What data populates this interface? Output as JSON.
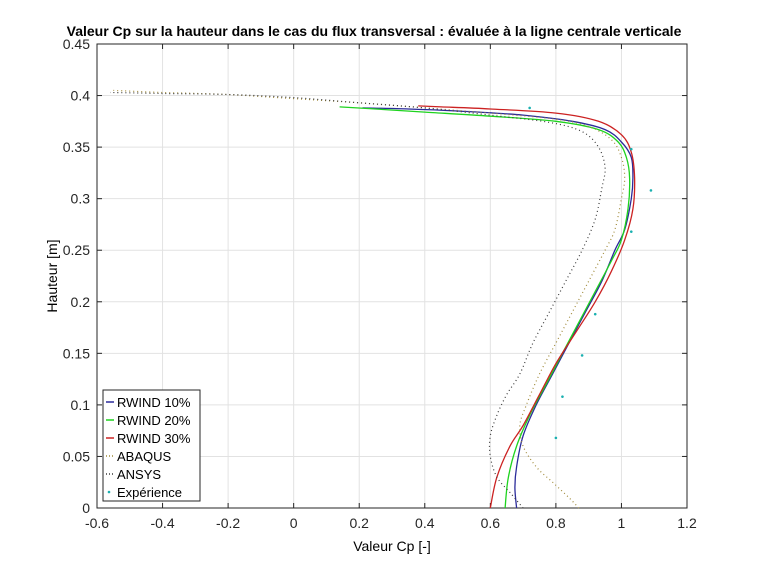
{
  "chart_data": {
    "type": "line",
    "title": "Valeur Cp sur la hauteur dans le cas du flux transversal : évaluée à la ligne centrale verticale",
    "xlabel": "Valeur Cp [-]",
    "ylabel": "Hauteur [m]",
    "xlim": [
      -0.6,
      1.2
    ],
    "ylim": [
      0,
      0.45
    ],
    "xticks": [
      -0.6,
      -0.4,
      -0.2,
      0,
      0.2,
      0.4,
      0.6,
      0.8,
      1,
      1.2
    ],
    "xtick_labels": [
      "-0.6",
      "-0.4",
      "-0.2",
      "0",
      "0.2",
      "0.4",
      "0.6",
      "0.8",
      "1",
      "1.2"
    ],
    "yticks": [
      0,
      0.05,
      0.1,
      0.15,
      0.2,
      0.25,
      0.3,
      0.35,
      0.4,
      0.45
    ],
    "ytick_labels": [
      "0",
      "0.05",
      "0.1",
      "0.15",
      "0.2",
      "0.25",
      "0.3",
      "0.35",
      "0.4",
      "0.45"
    ],
    "grid": true,
    "legend_position": "bottom-left",
    "series": [
      {
        "name": "RWIND 10%",
        "style": "solid",
        "color": "#2b2b9a",
        "points": [
          [
            0.68,
            0
          ],
          [
            0.675,
            0.02
          ],
          [
            0.68,
            0.04
          ],
          [
            0.7,
            0.07
          ],
          [
            0.74,
            0.1
          ],
          [
            0.79,
            0.13
          ],
          [
            0.84,
            0.16
          ],
          [
            0.89,
            0.19
          ],
          [
            0.94,
            0.22
          ],
          [
            0.98,
            0.25
          ],
          [
            1.01,
            0.27
          ],
          [
            1.03,
            0.3
          ],
          [
            1.035,
            0.32
          ],
          [
            1.03,
            0.34
          ],
          [
            1.0,
            0.355
          ],
          [
            0.95,
            0.367
          ],
          [
            0.85,
            0.375
          ],
          [
            0.7,
            0.381
          ],
          [
            0.5,
            0.385
          ],
          [
            0.35,
            0.387
          ],
          [
            0.21,
            0.388
          ]
        ]
      },
      {
        "name": "RWIND 20%",
        "style": "solid",
        "color": "#1ed31e",
        "points": [
          [
            0.645,
            0
          ],
          [
            0.655,
            0.03
          ],
          [
            0.68,
            0.06
          ],
          [
            0.72,
            0.09
          ],
          [
            0.77,
            0.12
          ],
          [
            0.82,
            0.15
          ],
          [
            0.87,
            0.18
          ],
          [
            0.92,
            0.21
          ],
          [
            0.97,
            0.24
          ],
          [
            1.0,
            0.26
          ],
          [
            1.02,
            0.29
          ],
          [
            1.025,
            0.32
          ],
          [
            1.015,
            0.34
          ],
          [
            0.99,
            0.355
          ],
          [
            0.93,
            0.367
          ],
          [
            0.8,
            0.375
          ],
          [
            0.6,
            0.38
          ],
          [
            0.4,
            0.384
          ],
          [
            0.25,
            0.387
          ],
          [
            0.14,
            0.389
          ]
        ]
      },
      {
        "name": "RWIND 30%",
        "style": "solid",
        "color": "#cc2222",
        "points": [
          [
            0.6,
            0
          ],
          [
            0.62,
            0.03
          ],
          [
            0.66,
            0.06
          ],
          [
            0.7,
            0.08
          ],
          [
            0.75,
            0.11
          ],
          [
            0.8,
            0.14
          ],
          [
            0.86,
            0.17
          ],
          [
            0.92,
            0.2
          ],
          [
            0.97,
            0.23
          ],
          [
            1.01,
            0.26
          ],
          [
            1.035,
            0.29
          ],
          [
            1.04,
            0.32
          ],
          [
            1.03,
            0.345
          ],
          [
            1.0,
            0.362
          ],
          [
            0.93,
            0.375
          ],
          [
            0.8,
            0.383
          ],
          [
            0.6,
            0.387
          ],
          [
            0.45,
            0.389
          ],
          [
            0.38,
            0.39
          ]
        ]
      },
      {
        "name": "ABAQUS",
        "style": "dotted",
        "color": "#a08a3a",
        "points": [
          [
            0.87,
            0
          ],
          [
            0.84,
            0.01
          ],
          [
            0.79,
            0.025
          ],
          [
            0.74,
            0.04
          ],
          [
            0.7,
            0.06
          ],
          [
            0.69,
            0.08
          ],
          [
            0.71,
            0.1
          ],
          [
            0.75,
            0.13
          ],
          [
            0.8,
            0.16
          ],
          [
            0.85,
            0.19
          ],
          [
            0.9,
            0.22
          ],
          [
            0.95,
            0.25
          ],
          [
            0.98,
            0.27
          ],
          [
            1.0,
            0.3
          ],
          [
            1.01,
            0.32
          ],
          [
            1.0,
            0.34
          ],
          [
            0.97,
            0.357
          ],
          [
            0.9,
            0.37
          ],
          [
            0.8,
            0.377
          ],
          [
            0.6,
            0.383
          ],
          [
            0.4,
            0.388
          ],
          [
            0.2,
            0.393
          ],
          [
            0.0,
            0.397
          ],
          [
            -0.2,
            0.401
          ],
          [
            -0.4,
            0.403
          ],
          [
            -0.55,
            0.405
          ]
        ]
      },
      {
        "name": "ANSYS",
        "style": "dotted",
        "color": "#3a3a3a",
        "points": [
          [
            0.7,
            0
          ],
          [
            0.66,
            0.015
          ],
          [
            0.62,
            0.03
          ],
          [
            0.6,
            0.05
          ],
          [
            0.6,
            0.07
          ],
          [
            0.62,
            0.09
          ],
          [
            0.65,
            0.11
          ],
          [
            0.69,
            0.13
          ],
          [
            0.73,
            0.16
          ],
          [
            0.78,
            0.19
          ],
          [
            0.83,
            0.22
          ],
          [
            0.88,
            0.25
          ],
          [
            0.92,
            0.28
          ],
          [
            0.94,
            0.31
          ],
          [
            0.95,
            0.33
          ],
          [
            0.93,
            0.35
          ],
          [
            0.88,
            0.365
          ],
          [
            0.78,
            0.374
          ],
          [
            0.6,
            0.381
          ],
          [
            0.4,
            0.388
          ],
          [
            0.2,
            0.393
          ],
          [
            0.0,
            0.398
          ],
          [
            -0.2,
            0.401
          ],
          [
            -0.4,
            0.402
          ],
          [
            -0.56,
            0.403
          ]
        ]
      },
      {
        "name": "Expérience",
        "style": "markers",
        "color": "#1ab0b0",
        "points": [
          [
            1.09,
            0.308
          ],
          [
            1.03,
            0.348
          ],
          [
            1.03,
            0.268
          ],
          [
            0.92,
            0.188
          ],
          [
            0.88,
            0.148
          ],
          [
            0.82,
            0.108
          ],
          [
            0.8,
            0.068
          ],
          [
            0.72,
            0.388
          ]
        ]
      }
    ]
  }
}
